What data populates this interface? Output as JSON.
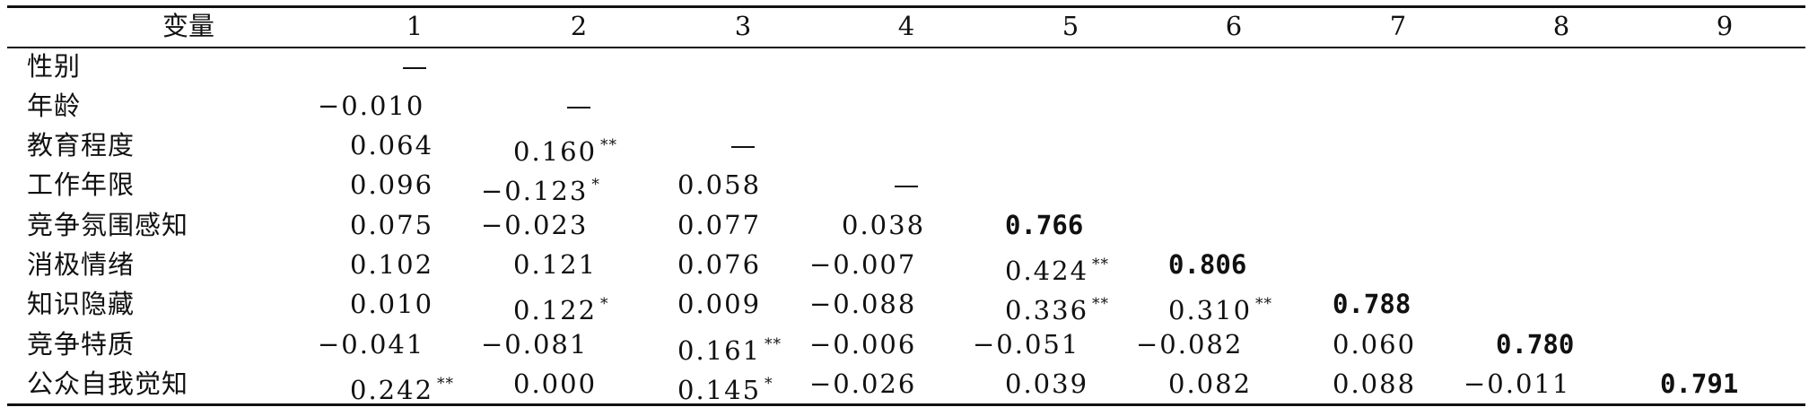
{
  "header": {
    "variable_label": "变量",
    "columns": [
      "1",
      "2",
      "3",
      "4",
      "5",
      "6",
      "7",
      "8",
      "9"
    ]
  },
  "rows": [
    {
      "label": "性别",
      "cells": [
        {
          "v": "—",
          "dash": true
        }
      ]
    },
    {
      "label": "年龄",
      "cells": [
        {
          "v": "−0.010"
        },
        {
          "v": "—",
          "dash": true
        }
      ]
    },
    {
      "label": "教育程度",
      "cells": [
        {
          "v": "0.064"
        },
        {
          "v": "0.160",
          "sig": "**"
        },
        {
          "v": "—",
          "dash": true
        }
      ]
    },
    {
      "label": "工作年限",
      "cells": [
        {
          "v": "0.096"
        },
        {
          "v": "−0.123",
          "sig": "*"
        },
        {
          "v": "0.058"
        },
        {
          "v": "—",
          "dash": true
        }
      ]
    },
    {
      "label": "竞争氛围感知",
      "cells": [
        {
          "v": "0.075"
        },
        {
          "v": "−0.023"
        },
        {
          "v": "0.077"
        },
        {
          "v": "0.038"
        },
        {
          "v": "0.766",
          "bold": true
        }
      ]
    },
    {
      "label": "消极情绪",
      "cells": [
        {
          "v": "0.102"
        },
        {
          "v": "0.121"
        },
        {
          "v": "0.076"
        },
        {
          "v": "−0.007"
        },
        {
          "v": "0.424",
          "sig": "**"
        },
        {
          "v": "0.806",
          "bold": true
        }
      ]
    },
    {
      "label": "知识隐藏",
      "cells": [
        {
          "v": "0.010"
        },
        {
          "v": "0.122",
          "sig": "*"
        },
        {
          "v": "0.009"
        },
        {
          "v": "−0.088"
        },
        {
          "v": "0.336",
          "sig": "**"
        },
        {
          "v": "0.310",
          "sig": "**"
        },
        {
          "v": "0.788",
          "bold": true
        }
      ]
    },
    {
      "label": "竞争特质",
      "cells": [
        {
          "v": "−0.041"
        },
        {
          "v": "−0.081"
        },
        {
          "v": "0.161",
          "sig": "**"
        },
        {
          "v": "−0.006"
        },
        {
          "v": "−0.051"
        },
        {
          "v": "−0.082"
        },
        {
          "v": "0.060"
        },
        {
          "v": "0.780",
          "bold": true
        }
      ]
    },
    {
      "label": "公众自我觉知",
      "cells": [
        {
          "v": "0.242",
          "sig": "**"
        },
        {
          "v": "0.000"
        },
        {
          "v": "0.145",
          "sig": "*"
        },
        {
          "v": "−0.026"
        },
        {
          "v": "0.039"
        },
        {
          "v": "0.082"
        },
        {
          "v": "0.088"
        },
        {
          "v": "−0.011"
        },
        {
          "v": "0.791",
          "bold": true
        }
      ]
    }
  ]
}
